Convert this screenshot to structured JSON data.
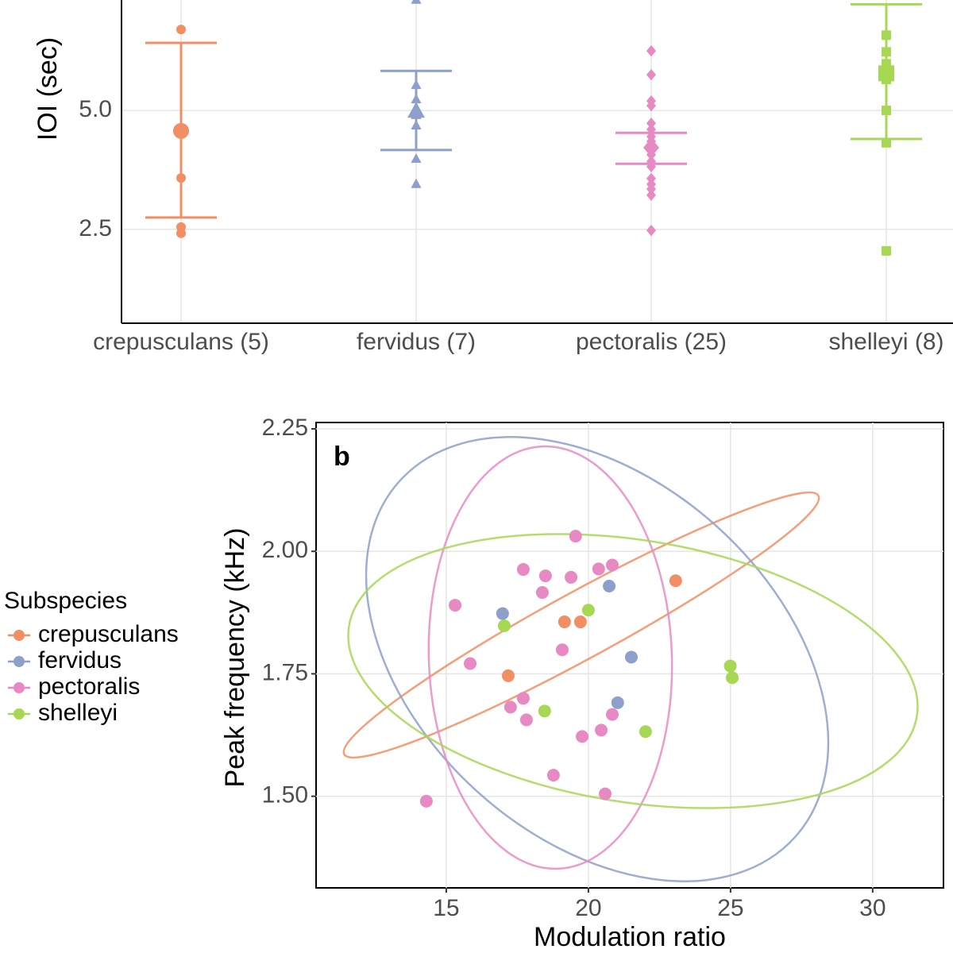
{
  "chart_data": [
    {
      "type": "errorbar",
      "ylabel": "IOI (sec)",
      "categories": [
        "crepusculans (5)",
        "fervidus (7)",
        "pectoralis (25)",
        "shelleyi (8)"
      ],
      "groups": [
        {
          "color": "#f28e63",
          "marker": "circle",
          "points": [
            6.7,
            3.58,
            2.55,
            2.42
          ],
          "mean": 4.57,
          "error": [
            2.75,
            6.42
          ]
        },
        {
          "color": "#8da0cb",
          "marker": "triangle",
          "points": [
            7.32,
            5.53,
            5.23,
            4.9,
            4.68,
            3.98,
            3.45
          ],
          "mean": 4.98,
          "error": [
            4.17,
            5.83
          ]
        },
        {
          "color": "#e78ac3",
          "marker": "diamond",
          "points": [
            6.25,
            5.75,
            5.2,
            5.1,
            4.73,
            4.6,
            4.45,
            4.35,
            4.22,
            4.07,
            3.93,
            3.82,
            3.57,
            3.45,
            3.35,
            3.22,
            2.48
          ],
          "mean": 4.22,
          "error": [
            3.88,
            4.53
          ]
        },
        {
          "color": "#a6d854",
          "marker": "square",
          "points": [
            6.58,
            6.23,
            5.98,
            5.65,
            5.0,
            4.32,
            2.05
          ],
          "mean": 5.78,
          "error": [
            4.4,
            7.23
          ]
        }
      ],
      "ylim": [
        0.53,
        7.32
      ],
      "yticks": [
        2.5,
        {
          "value": 5,
          "label": "5.0"
        }
      ],
      "grid": true
    },
    {
      "type": "scatter",
      "label": "b",
      "xlabel": "Modulation ratio",
      "ylabel": "Peak frequency (kHz)",
      "legend_title": "Subspecies",
      "legend": "left",
      "series": [
        {
          "name": "crepusculans",
          "color": "#f28e63",
          "x": [
            19.16,
            19.72,
            17.18,
            23.07
          ],
          "values": [
            1.856,
            1.856,
            1.746,
            1.94
          ]
        },
        {
          "name": "fervidus",
          "color": "#8da0cb",
          "x": [
            16.98,
            20.73,
            21.51,
            21.03
          ],
          "values": [
            1.873,
            1.929,
            1.784,
            1.691
          ]
        },
        {
          "name": "pectoralis",
          "color": "#e78ac3",
          "x": [
            19.55,
            17.71,
            18.49,
            19.39,
            20.36,
            20.84,
            18.38,
            15.31,
            19.08,
            15.84,
            17.71,
            17.26,
            17.82,
            20.84,
            20.45,
            19.78,
            18.77,
            20.59,
            14.3
          ],
          "values": [
            2.031,
            1.963,
            1.95,
            1.947,
            1.964,
            1.972,
            1.916,
            1.89,
            1.799,
            1.771,
            1.7,
            1.682,
            1.656,
            1.667,
            1.635,
            1.622,
            1.543,
            1.505,
            1.49
          ]
        },
        {
          "name": "shelleyi",
          "color": "#a6d854",
          "x": [
            17.04,
            20.0,
            24.99,
            25.06,
            18.46,
            22.01
          ],
          "values": [
            1.848,
            1.88,
            1.766,
            1.742,
            1.674,
            1.632
          ]
        }
      ],
      "xlim": [
        10.42,
        32.49
      ],
      "ylim": [
        1.313,
        2.263
      ],
      "xticks": [
        15,
        20,
        25,
        30
      ],
      "yticks": [
        2.25,
        {
          "value": 2,
          "label": "2.00"
        },
        1.75,
        {
          "value": 1.5,
          "label": "1.50"
        }
      ],
      "grid": true
    }
  ]
}
